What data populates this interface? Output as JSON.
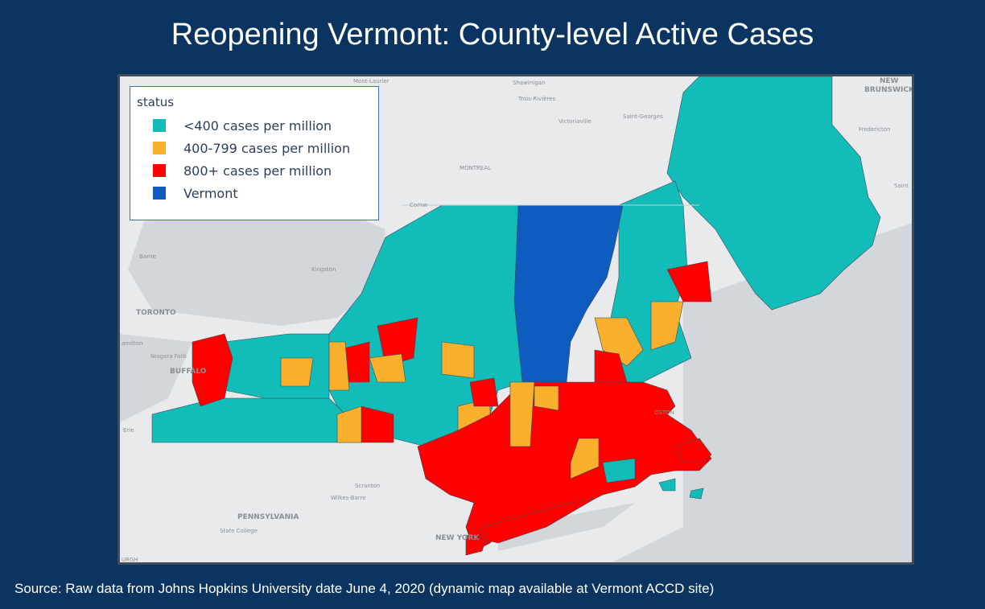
{
  "title": "Reopening Vermont: County-level Active Cases",
  "legend": {
    "title": "status",
    "items": [
      {
        "label": "<400 cases per million",
        "color": "#12bdb9"
      },
      {
        "label": "400-799 cases per million",
        "color": "#fbb02d"
      },
      {
        "label": "800+ cases per million",
        "color": "#fe0000"
      },
      {
        "label": "Vermont",
        "color": "#0f5cc0"
      }
    ]
  },
  "map_labels": {
    "mont_laurier": "Mont-Laurier",
    "shawinigan": "Shawinigan",
    "trois_rivieres": "Trois-Rivières",
    "victoriaville": "Victoriaville",
    "saint_georges": "Saint-Georges",
    "new_brunswick": "NEW\nBRUNSWICK",
    "fredericton": "Fredericton",
    "saint": "Saint",
    "montreal": "MONTREAL",
    "cornwall": "Cornw",
    "barrie": "Barrie",
    "kingston": "Kingston",
    "toronto": "TORONTO",
    "hamilton": "amilton",
    "niagara_falls": "Niagara Falls",
    "buffalo": "BUFFALO",
    "erie": "Erie",
    "boston": "OSTON",
    "scranton": "Scranton",
    "wilkes_barre": "Wilkes-Barre",
    "pennsylvania": "PENNSYLVANIA",
    "state_college": "State College",
    "new_york": "NEW YORK",
    "pittsburgh": "URGH"
  },
  "source": "Source: Raw data from Johns Hopkins University date June 4, 2020 (dynamic map available at Vermont ACCD site)"
}
